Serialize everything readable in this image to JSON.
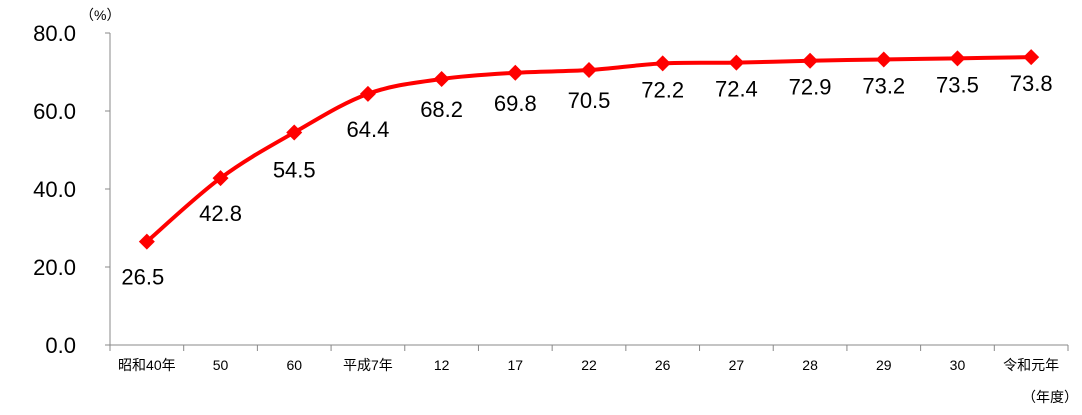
{
  "chart_data": {
    "type": "line",
    "categories": [
      "昭和40年",
      "50",
      "60",
      "平成7年",
      "12",
      "17",
      "22",
      "26",
      "27",
      "28",
      "29",
      "30",
      "令和元年"
    ],
    "series": [
      {
        "values": [
          26.5,
          42.8,
          54.5,
          64.4,
          68.2,
          69.8,
          70.5,
          72.2,
          72.4,
          72.9,
          73.2,
          73.5,
          73.8
        ],
        "data_labels": [
          "26.5",
          "42.8",
          "54.5",
          "64.4",
          "68.2",
          "69.8",
          "70.5",
          "72.2",
          "72.4",
          "72.9",
          "73.2",
          "73.5",
          "73.8"
        ],
        "color": "#ff0000",
        "marker": "diamond"
      }
    ],
    "y_ticks": [
      "0.0",
      "20.0",
      "40.0",
      "60.0",
      "80.0"
    ],
    "ylim": [
      0,
      80
    ],
    "y_unit": "（%）",
    "x_unit": "（年度）",
    "grid": false,
    "legend": "none"
  }
}
